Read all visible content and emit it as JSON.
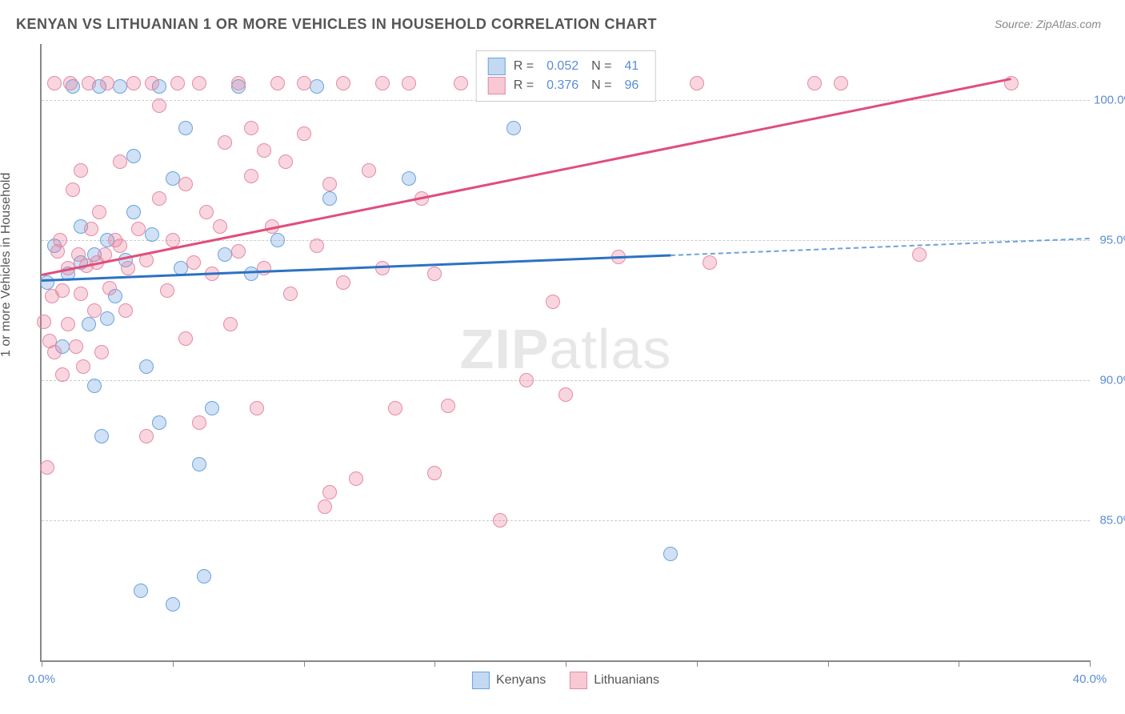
{
  "title": "KENYAN VS LITHUANIAN 1 OR MORE VEHICLES IN HOUSEHOLD CORRELATION CHART",
  "source": "Source: ZipAtlas.com",
  "ylabel": "1 or more Vehicles in Household",
  "watermark_bold": "ZIP",
  "watermark_rest": "atlas",
  "chart": {
    "type": "scatter",
    "xlim": [
      0,
      40
    ],
    "ylim": [
      80,
      102
    ],
    "xtick_positions": [
      0,
      5,
      10,
      15,
      20,
      25,
      30,
      35,
      40
    ],
    "xtick_labels": {
      "0": "0.0%",
      "40": "40.0%"
    },
    "ytick_positions": [
      85,
      90,
      95,
      100
    ],
    "ytick_labels": [
      "85.0%",
      "90.0%",
      "95.0%",
      "100.0%"
    ],
    "background_color": "#ffffff",
    "grid_color": "#cccccc",
    "axis_color": "#888888",
    "tick_label_color": "#5b8dd6",
    "marker_radius": 9,
    "marker_border_width": 1.5,
    "series": [
      {
        "name": "Kenyans",
        "fill_color": "rgba(120,170,225,0.35)",
        "stroke_color": "#6aa3dd",
        "R": "0.052",
        "N": "41",
        "trend": {
          "x1": 0,
          "y1": 93.6,
          "x2": 24,
          "y2": 94.5,
          "color": "#2b72c4",
          "dash": false
        },
        "trend_ext": {
          "x1": 24,
          "y1": 94.5,
          "x2": 40,
          "y2": 95.1,
          "color": "#6aa3dd",
          "dash": true
        },
        "points": [
          [
            0.2,
            93.5
          ],
          [
            0.5,
            94.8
          ],
          [
            0.8,
            91.2
          ],
          [
            1.0,
            93.8
          ],
          [
            1.2,
            100.5
          ],
          [
            1.5,
            94.2
          ],
          [
            1.5,
            95.5
          ],
          [
            1.8,
            92.0
          ],
          [
            2.0,
            89.8
          ],
          [
            2.0,
            94.5
          ],
          [
            2.2,
            100.5
          ],
          [
            2.3,
            88.0
          ],
          [
            2.5,
            92.2
          ],
          [
            2.5,
            95.0
          ],
          [
            2.8,
            93.0
          ],
          [
            3.0,
            100.5
          ],
          [
            3.2,
            94.3
          ],
          [
            3.5,
            96.0
          ],
          [
            3.5,
            98.0
          ],
          [
            3.8,
            82.5
          ],
          [
            4.0,
            90.5
          ],
          [
            4.2,
            95.2
          ],
          [
            4.5,
            88.5
          ],
          [
            4.5,
            100.5
          ],
          [
            5.0,
            82.0
          ],
          [
            5.0,
            97.2
          ],
          [
            5.3,
            94.0
          ],
          [
            5.5,
            99.0
          ],
          [
            6.0,
            87.0
          ],
          [
            6.2,
            83.0
          ],
          [
            6.5,
            89.0
          ],
          [
            7.0,
            94.5
          ],
          [
            7.5,
            100.5
          ],
          [
            8.0,
            93.8
          ],
          [
            9.0,
            95.0
          ],
          [
            10.5,
            100.5
          ],
          [
            11.0,
            96.5
          ],
          [
            14.0,
            97.2
          ],
          [
            18.0,
            99.0
          ],
          [
            22.5,
            100.5
          ],
          [
            24.0,
            83.8
          ]
        ]
      },
      {
        "name": "Lithuanians",
        "fill_color": "rgba(235,120,150,0.30)",
        "stroke_color": "#e58aa4",
        "R": "0.376",
        "N": "96",
        "trend": {
          "x1": 0,
          "y1": 93.8,
          "x2": 37,
          "y2": 100.8,
          "color": "#e04e7b",
          "dash": false
        },
        "points": [
          [
            0.1,
            92.1
          ],
          [
            0.2,
            86.9
          ],
          [
            0.3,
            91.4
          ],
          [
            0.4,
            93.0
          ],
          [
            0.5,
            91.0
          ],
          [
            0.5,
            100.6
          ],
          [
            0.6,
            94.6
          ],
          [
            0.7,
            95.0
          ],
          [
            0.8,
            90.2
          ],
          [
            0.8,
            93.2
          ],
          [
            1.0,
            92.0
          ],
          [
            1.0,
            94.0
          ],
          [
            1.1,
            100.6
          ],
          [
            1.2,
            96.8
          ],
          [
            1.3,
            91.2
          ],
          [
            1.4,
            94.5
          ],
          [
            1.5,
            93.1
          ],
          [
            1.5,
            97.5
          ],
          [
            1.6,
            90.5
          ],
          [
            1.7,
            94.1
          ],
          [
            1.8,
            100.6
          ],
          [
            1.9,
            95.4
          ],
          [
            2.0,
            92.5
          ],
          [
            2.1,
            94.2
          ],
          [
            2.2,
            96.0
          ],
          [
            2.3,
            91.0
          ],
          [
            2.4,
            94.5
          ],
          [
            2.5,
            100.6
          ],
          [
            2.6,
            93.3
          ],
          [
            2.8,
            95.0
          ],
          [
            3.0,
            94.8
          ],
          [
            3.0,
            97.8
          ],
          [
            3.2,
            92.5
          ],
          [
            3.3,
            94.0
          ],
          [
            3.5,
            100.6
          ],
          [
            3.7,
            95.4
          ],
          [
            4.0,
            88.0
          ],
          [
            4.0,
            94.3
          ],
          [
            4.2,
            100.6
          ],
          [
            4.5,
            96.5
          ],
          [
            4.5,
            99.8
          ],
          [
            4.8,
            93.2
          ],
          [
            5.0,
            95.0
          ],
          [
            5.2,
            100.6
          ],
          [
            5.5,
            91.5
          ],
          [
            5.5,
            97.0
          ],
          [
            5.8,
            94.2
          ],
          [
            6.0,
            88.5
          ],
          [
            6.0,
            100.6
          ],
          [
            6.3,
            96.0
          ],
          [
            6.5,
            93.8
          ],
          [
            6.8,
            95.5
          ],
          [
            7.0,
            98.5
          ],
          [
            7.2,
            92.0
          ],
          [
            7.5,
            94.6
          ],
          [
            7.5,
            100.6
          ],
          [
            8.0,
            97.3
          ],
          [
            8.0,
            99.0
          ],
          [
            8.2,
            89.0
          ],
          [
            8.5,
            94.0
          ],
          [
            8.5,
            98.2
          ],
          [
            8.8,
            95.5
          ],
          [
            9.0,
            100.6
          ],
          [
            9.3,
            97.8
          ],
          [
            9.5,
            93.1
          ],
          [
            10.0,
            98.8
          ],
          [
            10.0,
            100.6
          ],
          [
            10.5,
            94.8
          ],
          [
            10.8,
            85.5
          ],
          [
            11.0,
            97.0
          ],
          [
            11.0,
            86.0
          ],
          [
            11.5,
            93.5
          ],
          [
            11.5,
            100.6
          ],
          [
            12.0,
            86.5
          ],
          [
            12.5,
            97.5
          ],
          [
            13.0,
            100.6
          ],
          [
            13.0,
            94.0
          ],
          [
            13.5,
            89.0
          ],
          [
            14.0,
            100.6
          ],
          [
            14.5,
            96.5
          ],
          [
            15.0,
            93.8
          ],
          [
            15.0,
            86.7
          ],
          [
            15.5,
            89.1
          ],
          [
            16.0,
            100.6
          ],
          [
            17.5,
            85.0
          ],
          [
            18.5,
            90.0
          ],
          [
            19.5,
            92.8
          ],
          [
            20.0,
            89.5
          ],
          [
            22.0,
            94.4
          ],
          [
            23.0,
            100.6
          ],
          [
            25.0,
            100.6
          ],
          [
            25.5,
            94.2
          ],
          [
            29.5,
            100.6
          ],
          [
            30.5,
            100.6
          ],
          [
            33.5,
            94.5
          ],
          [
            37.0,
            100.6
          ]
        ]
      }
    ]
  },
  "legend_top": [
    {
      "swatch_fill": "rgba(120,170,225,0.45)",
      "swatch_stroke": "#6aa3dd",
      "R": "0.052",
      "N": "41"
    },
    {
      "swatch_fill": "rgba(235,120,150,0.40)",
      "swatch_stroke": "#e58aa4",
      "R": "0.376",
      "N": "96"
    }
  ],
  "legend_bottom": [
    {
      "swatch_fill": "rgba(120,170,225,0.45)",
      "swatch_stroke": "#6aa3dd",
      "label": "Kenyans"
    },
    {
      "swatch_fill": "rgba(235,120,150,0.40)",
      "swatch_stroke": "#e58aa4",
      "label": "Lithuanians"
    }
  ]
}
